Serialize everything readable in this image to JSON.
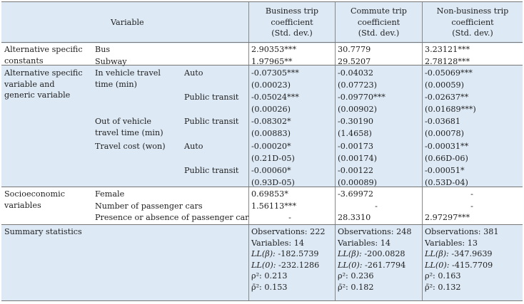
{
  "header": {
    "variable": "Variable",
    "business": [
      "Business trip",
      "coefficient",
      "(Std. dev.)"
    ],
    "commute": [
      "Commute trip",
      "coefficient",
      "(Std. dev.)"
    ],
    "nonbusiness": [
      "Non-business trip",
      "coefficient",
      "(Std. dev.)"
    ]
  },
  "groups": {
    "asc": [
      "Alternative specific",
      "constants"
    ],
    "asv": [
      "Alternative specific",
      "variable and",
      "generic variable"
    ],
    "socio": [
      "Socioeconomic",
      "variables"
    ],
    "summary": "Summary statistics"
  },
  "vars": {
    "bus": "Bus",
    "subway": "Subway",
    "ivtt": [
      "In vehicle travel",
      "time (min)"
    ],
    "ovtt": [
      "Out of vehicle",
      "travel time (min)"
    ],
    "cost": "Travel cost (won)",
    "female": "Female",
    "ncars": "Number of passenger cars",
    "pcar": "Presence or absence of passenger car"
  },
  "modes": {
    "auto": "Auto",
    "pt": "Public transit"
  },
  "values": {
    "bus": [
      "2.90353***",
      "30.7779",
      "3.23121***"
    ],
    "subway": [
      "1.97965**",
      "29.5207",
      "2.78128***"
    ],
    "ivtt_auto": [
      "-0.07305***",
      "-0.04032",
      "-0.05069***"
    ],
    "ivtt_auto_sd": [
      "(0.00023)",
      "(0.07723)",
      "(0.00059)"
    ],
    "ivtt_pt": [
      "-0.05024***",
      "-0.09770***",
      "-0.02637**"
    ],
    "ivtt_pt_sd": [
      "(0.00026)",
      "(0.00902)",
      "(0.01689***)"
    ],
    "ovtt_pt": [
      "-0.08302*",
      "-0.30190",
      "-0.03681"
    ],
    "ovtt_pt_sd": [
      "(0.00883)",
      "(1.4658)",
      "(0.00078)"
    ],
    "cost_auto": [
      "-0.00020*",
      "-0.00173",
      "-0.00031**"
    ],
    "cost_auto_sd": [
      "(0.21D-05)",
      "(0.00174)",
      "(0.66D-06)"
    ],
    "cost_pt": [
      "-0.00060*",
      "-0.00122",
      "-0.00051*"
    ],
    "cost_pt_sd": [
      "(0.93D-05)",
      "(0.00089)",
      "(0.53D-04)"
    ],
    "female": [
      "0.69853*",
      "-3.69972",
      "-"
    ],
    "ncars": [
      "1.56113***",
      "-",
      "-"
    ],
    "pcar": [
      "-",
      "28.3310",
      "2.97297***"
    ]
  },
  "summary": {
    "business": {
      "obs": "Observations: 222",
      "vars": "Variables: 14",
      "llb": "-182.5739",
      "ll0": "-232.1286",
      "rho": "0.213",
      "rhobar": "0.153"
    },
    "commute": {
      "obs": "Observations: 248",
      "vars": "Variables: 14",
      "llb": "-200.0828",
      "ll0": "-261.7794",
      "rho": "0.236",
      "rhobar": "0.182"
    },
    "nonbusiness": {
      "obs": "Observations: 381",
      "vars": "Variables: 13",
      "llb": "-347.9639",
      "ll0": "-415.7709",
      "rho": "0.163",
      "rhobar": "0.132"
    },
    "llb_label": "LL(β):",
    "ll0_label": "LL(0):",
    "rho_label": "ρ²:",
    "rhobar_label": "ρ̄²:"
  }
}
